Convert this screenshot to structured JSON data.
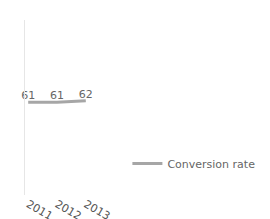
{
  "chart_data": {
    "type": "line",
    "categories": [
      "2011",
      "2012",
      "2013"
    ],
    "series": [
      {
        "name": "Conversion rate",
        "color": "#a6a6a6",
        "values": [
          61,
          61,
          62
        ]
      }
    ],
    "ylim": [
      0,
      115
    ],
    "yticks": [],
    "data_labels": true,
    "tick_labels": "x",
    "legend": "right"
  }
}
